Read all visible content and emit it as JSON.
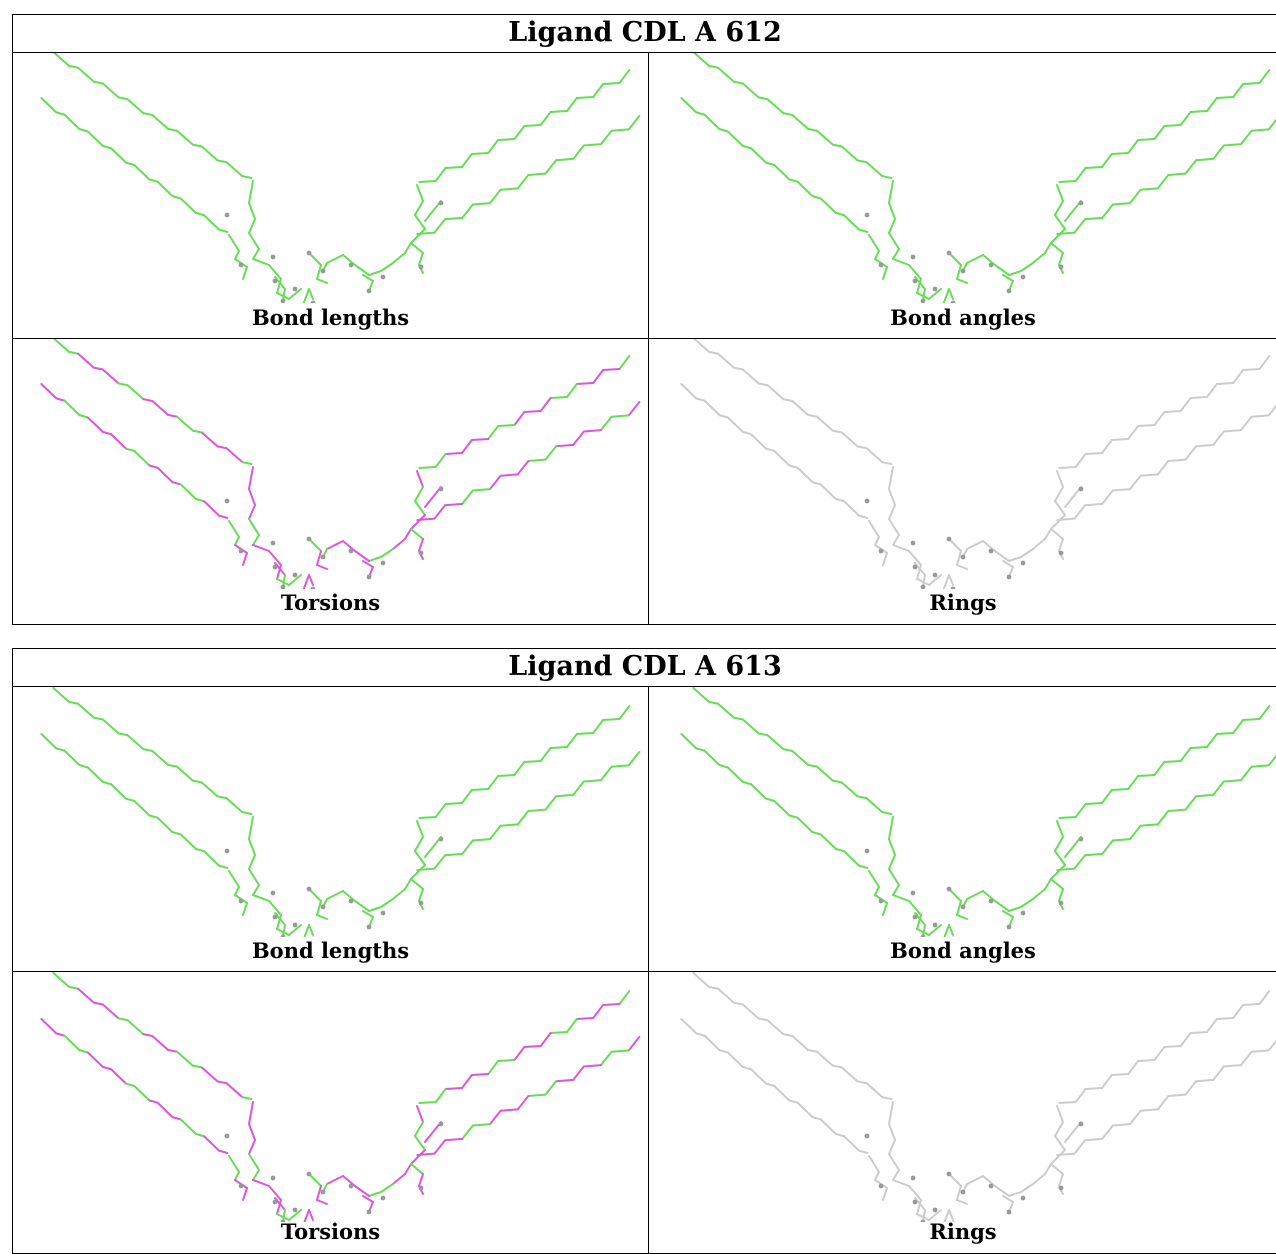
{
  "tables": [
    {
      "title": "Ligand CDL A 612",
      "panels": [
        {
          "caption": "Bond lengths",
          "scheme": "green"
        },
        {
          "caption": "Bond angles",
          "scheme": "green"
        },
        {
          "caption": "Torsions",
          "scheme": "torsion"
        },
        {
          "caption": "Rings",
          "scheme": "grey"
        }
      ]
    },
    {
      "title": "Ligand CDL A 613",
      "panels": [
        {
          "caption": "Bond lengths",
          "scheme": "green"
        },
        {
          "caption": "Bond angles",
          "scheme": "green"
        },
        {
          "caption": "Torsions",
          "scheme": "torsion"
        },
        {
          "caption": "Rings",
          "scheme": "grey"
        }
      ]
    }
  ],
  "colors": {
    "outlier_ok": "#66dd55",
    "outlier_torsion": "#dd55dd",
    "neutral_bond": "#cccccc",
    "atom": "#999999"
  }
}
